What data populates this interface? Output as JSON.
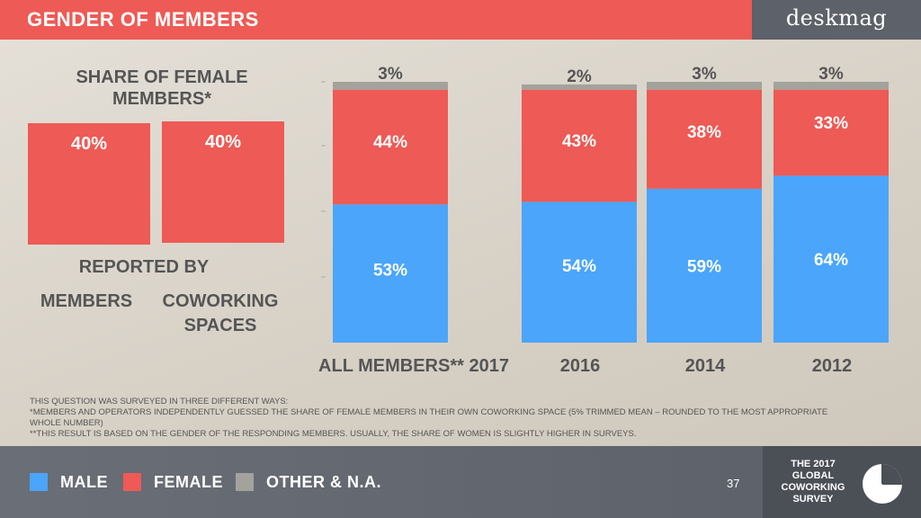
{
  "header": {
    "title": "GENDER OF MEMBERS",
    "logo": "deskmag"
  },
  "left_panel": {
    "title": "SHARE OF FEMALE MEMBERS*",
    "reported_by": "REPORTED BY",
    "members_label": "MEMBERS",
    "spaces_label": "COWORKING SPACES",
    "members_value": "40%",
    "spaces_value": "40%"
  },
  "chart_data": {
    "type": "bar",
    "stacked": true,
    "categories": [
      "ALL MEMBERS** 2017",
      "2016",
      "2014",
      "2012"
    ],
    "series": [
      {
        "name": "MALE",
        "color": "#4aa5fb",
        "values": [
          53,
          54,
          59,
          64
        ]
      },
      {
        "name": "FEMALE",
        "color": "#ee5a55",
        "values": [
          44,
          43,
          38,
          33
        ]
      },
      {
        "name": "OTHER & N.A.",
        "color": "#a3a29d",
        "values": [
          3,
          2,
          3,
          3
        ]
      }
    ],
    "value_labels": [
      [
        "53%",
        "54%",
        "59%",
        "64%"
      ],
      [
        "44%",
        "43%",
        "38%",
        "33%"
      ],
      [
        "3%",
        "2%",
        "3%",
        "3%"
      ]
    ],
    "ylim": [
      0,
      100
    ],
    "legend": "bottom",
    "grid": false
  },
  "left_chart": {
    "type": "bar",
    "categories": [
      "MEMBERS",
      "COWORKING SPACES"
    ],
    "values": [
      40,
      40
    ],
    "color": "#ee5a55"
  },
  "footnotes": [
    "THIS QUESTION WAS SURVEYED IN THREE DIFFERENT WAYS:",
    "*MEMBERS AND OPERATORS INDEPENDENTLY GUESSED THE SHARE OF FEMALE MEMBERS IN THEIR OWN COWORKING SPACE (5% TRIMMED MEAN – ROUNDED TO THE MOST APPROPRIATE WHOLE NUMBER)",
    "**THIS RESULT IS BASED ON THE GENDER OF THE RESPONDING MEMBERS. USUALLY, THE SHARE OF WOMEN IS SLIGHTLY HIGHER IN SURVEYS."
  ],
  "legend": {
    "male": "MALE",
    "female": "FEMALE",
    "other": "OTHER & N.A."
  },
  "footer": {
    "page_number": "37",
    "survey_line1": "THE 2017",
    "survey_line2": "GLOBAL",
    "survey_line3": "COWORKING",
    "survey_line4": "SURVEY",
    "survey_icon": "pie-chart-icon"
  },
  "colors": {
    "accent": "#ee5a55",
    "male": "#4aa5fb",
    "other": "#a3a29d",
    "dark": "#5d6169"
  }
}
